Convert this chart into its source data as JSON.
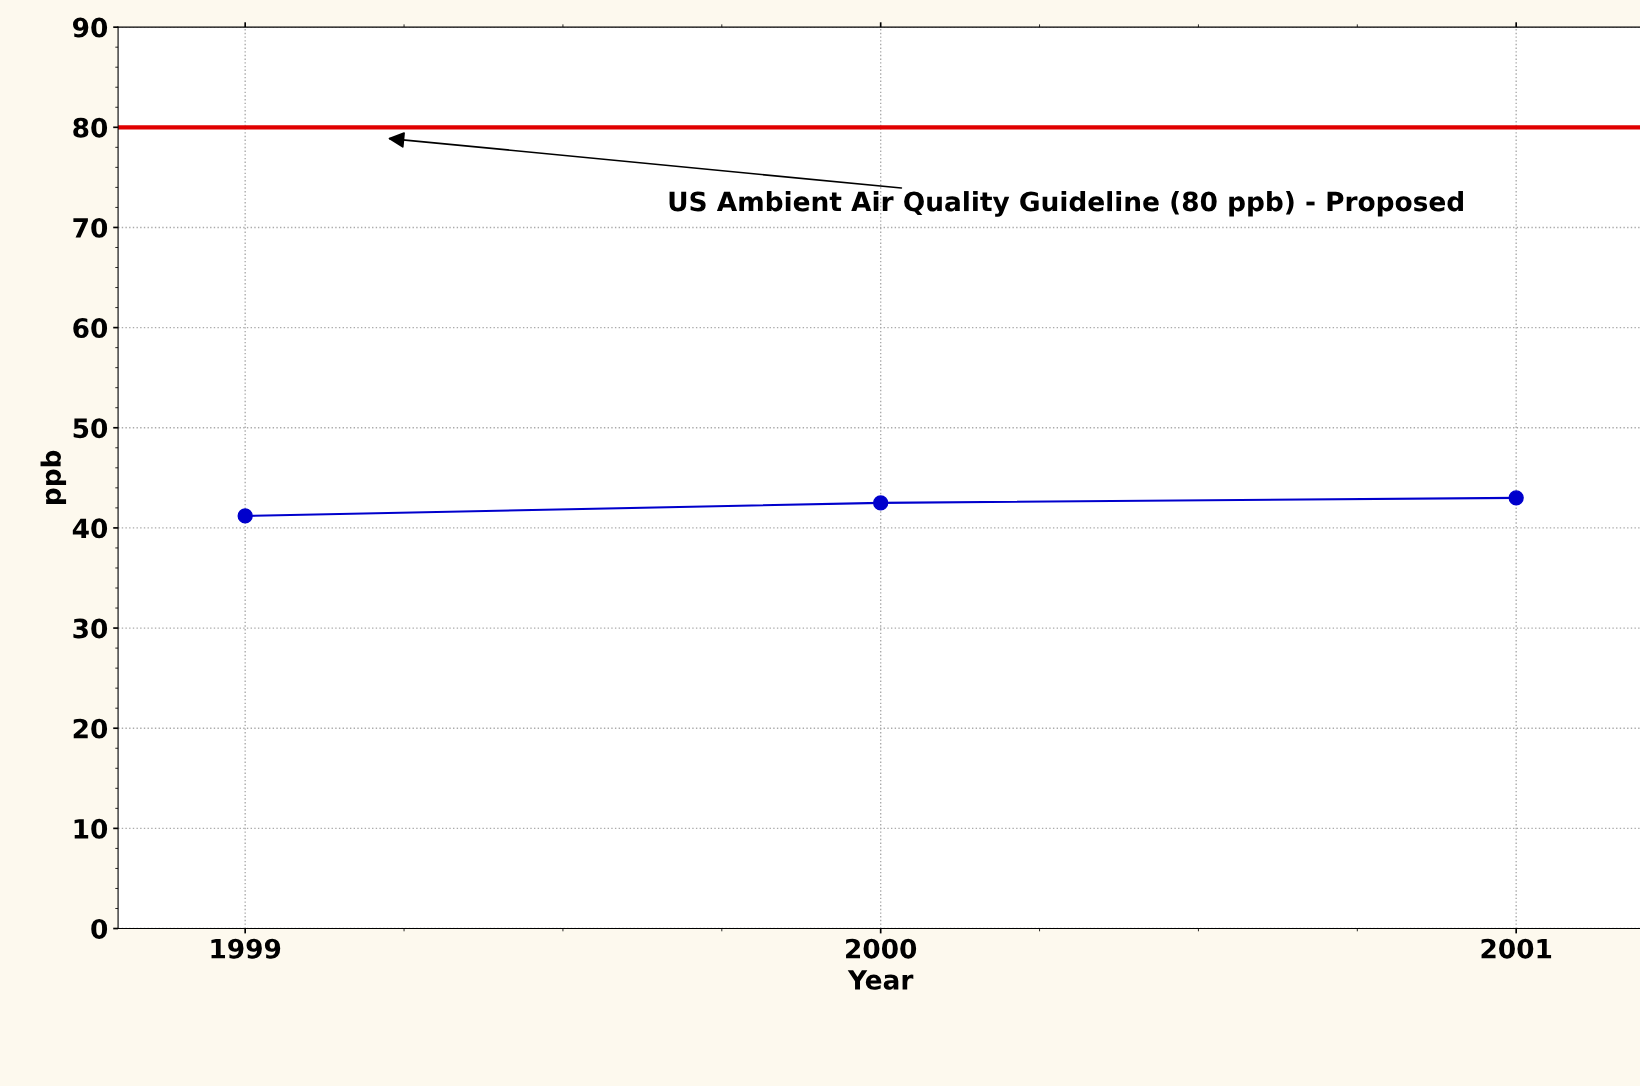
{
  "chart_data": {
    "type": "line",
    "xlabel": "Year",
    "ylabel": "ppb",
    "x": [
      1999,
      2000,
      2001
    ],
    "series": [
      {
        "color": "#0000cc",
        "values": [
          41.2,
          42.5,
          43.0
        ],
        "marker": "circle"
      }
    ],
    "xlim": [
      1998.8,
      2001.2
    ],
    "xticks": [
      1999,
      2000,
      2001
    ],
    "ylim": [
      0,
      90
    ],
    "yticks": [
      0,
      10,
      20,
      30,
      40,
      50,
      60,
      70,
      80,
      90
    ],
    "grid": true,
    "line_style": "solid",
    "ref_lines": [
      {
        "axis": "y",
        "value": 80,
        "label": "US Ambient Air Quality Guideline (80 ppb) - Proposed",
        "color": "#e00000",
        "line_style": "solid"
      }
    ]
  }
}
